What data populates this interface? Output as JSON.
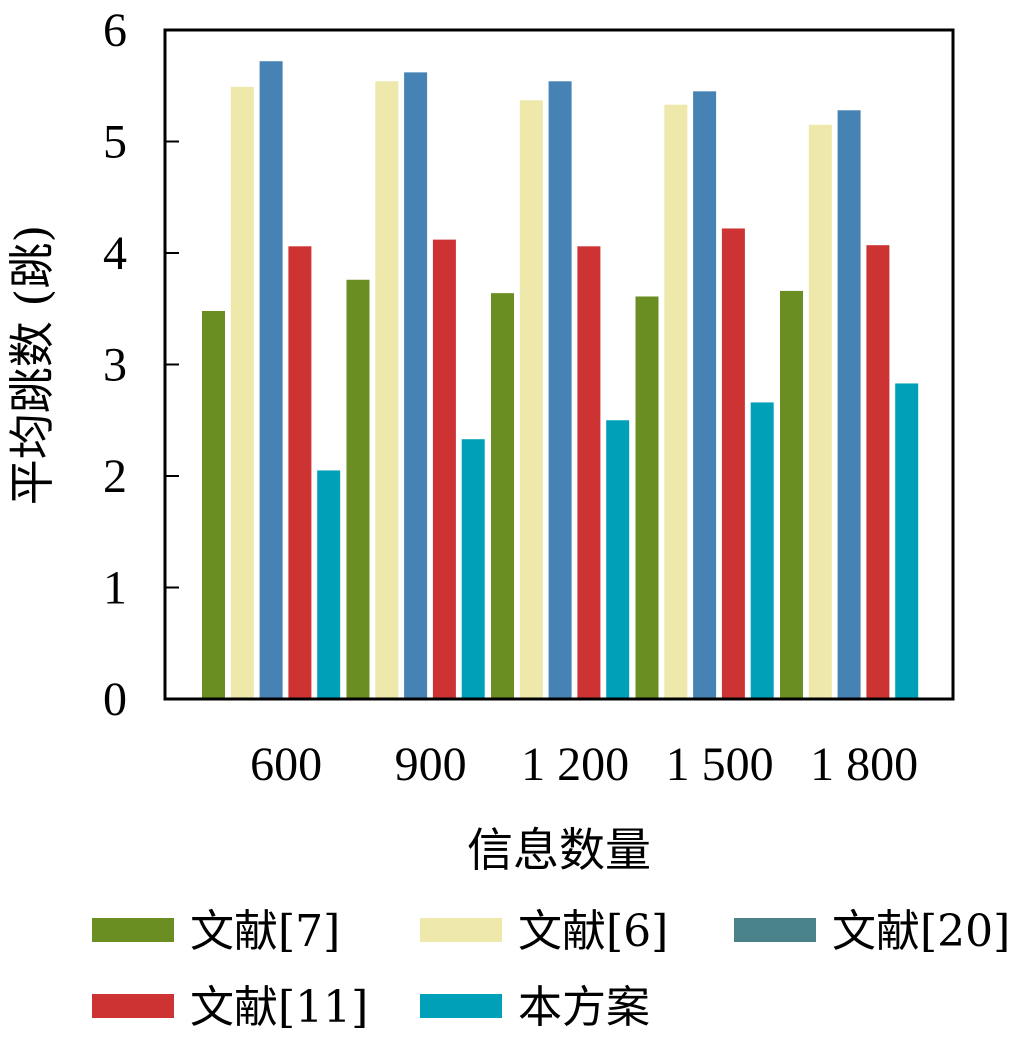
{
  "chart_data": {
    "type": "bar",
    "title": "",
    "xlabel": "信息数量",
    "ylabel": "平均跳数 (跳)",
    "categories": [
      "600",
      "900",
      "1 200",
      "1 500",
      "1 800"
    ],
    "ylim": [
      0,
      6
    ],
    "yticks": [
      "0",
      "1",
      "2",
      "3",
      "4",
      "5",
      "6"
    ],
    "grid": false,
    "legend_position": "bottom",
    "series": [
      {
        "name": "文献[7]",
        "color": "#6b8e23",
        "legend_color": "#6b8e23",
        "values": [
          3.48,
          3.76,
          3.64,
          3.61,
          3.66
        ]
      },
      {
        "name": "文献[6]",
        "color": "#eee8aa",
        "legend_color": "#eee8aa",
        "values": [
          5.49,
          5.54,
          5.37,
          5.33,
          5.15
        ]
      },
      {
        "name": "文献[20]",
        "color": "#4682b4",
        "legend_color": "#4a8289",
        "values": [
          5.72,
          5.62,
          5.54,
          5.45,
          5.28
        ]
      },
      {
        "name": "文献[11]",
        "color": "#cd3333",
        "legend_color": "#cd3333",
        "values": [
          4.06,
          4.12,
          4.06,
          4.22,
          4.07
        ]
      },
      {
        "name": "本方案",
        "color": "#00a0b8",
        "legend_color": "#00a0b8",
        "values": [
          2.05,
          2.33,
          2.5,
          2.66,
          2.83
        ]
      }
    ]
  }
}
